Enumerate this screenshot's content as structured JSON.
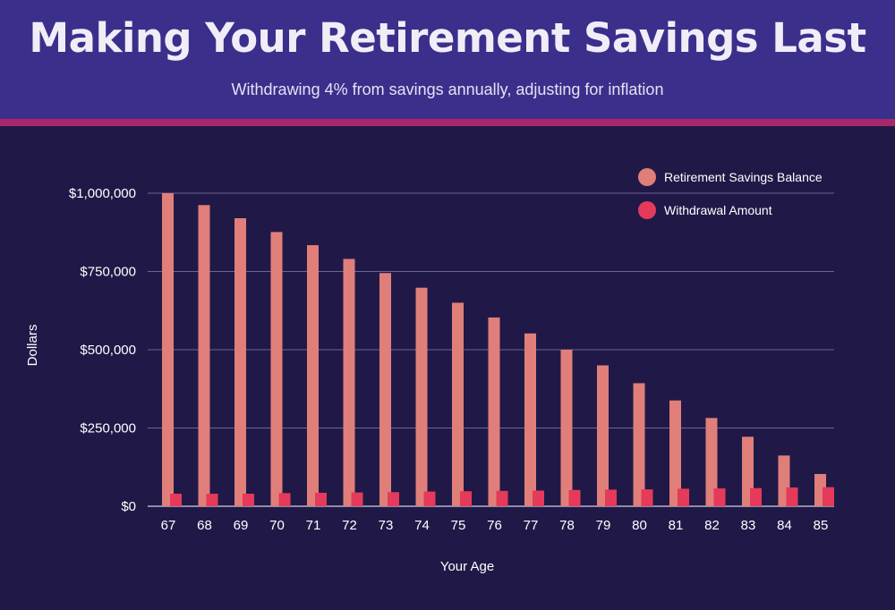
{
  "header": {
    "title": "Making Your Retirement Savings Last",
    "subtitle": "Withdrawing 4% from savings annually, adjusting for inflation"
  },
  "colors": {
    "background": "#201948",
    "header": "#3b2f8c",
    "stripe": "#a8266a",
    "balance": "#e07f79",
    "withdrawal": "#e53a5a",
    "grid": "#6b6594"
  },
  "chart_data": {
    "type": "bar",
    "xlabel": "Your Age",
    "ylabel": "Dollars",
    "ylim": [
      0,
      1000000
    ],
    "yticks": [
      0,
      250000,
      500000,
      750000,
      1000000
    ],
    "ytick_labels": [
      "$0",
      "$250,000",
      "$500,000",
      "$750,000",
      "$1,000,000"
    ],
    "grid": true,
    "legend_position": "top-right",
    "categories": [
      "67",
      "68",
      "69",
      "70",
      "71",
      "72",
      "73",
      "74",
      "75",
      "76",
      "77",
      "78",
      "79",
      "80",
      "81",
      "82",
      "83",
      "84",
      "85"
    ],
    "series": [
      {
        "name": "Retirement Savings Balance",
        "values": [
          1000000,
          962000,
          920000,
          876000,
          834000,
          790000,
          745000,
          698000,
          650000,
          603000,
          552000,
          500000,
          450000,
          393000,
          338000,
          282000,
          222000,
          162000,
          103000
        ]
      },
      {
        "name": "Withdrawal Amount",
        "values": [
          40000,
          40000,
          40000,
          42000,
          43000,
          44000,
          45000,
          47000,
          48000,
          49000,
          50000,
          52000,
          53000,
          54000,
          56000,
          57000,
          58000,
          60000,
          61000
        ]
      }
    ]
  }
}
